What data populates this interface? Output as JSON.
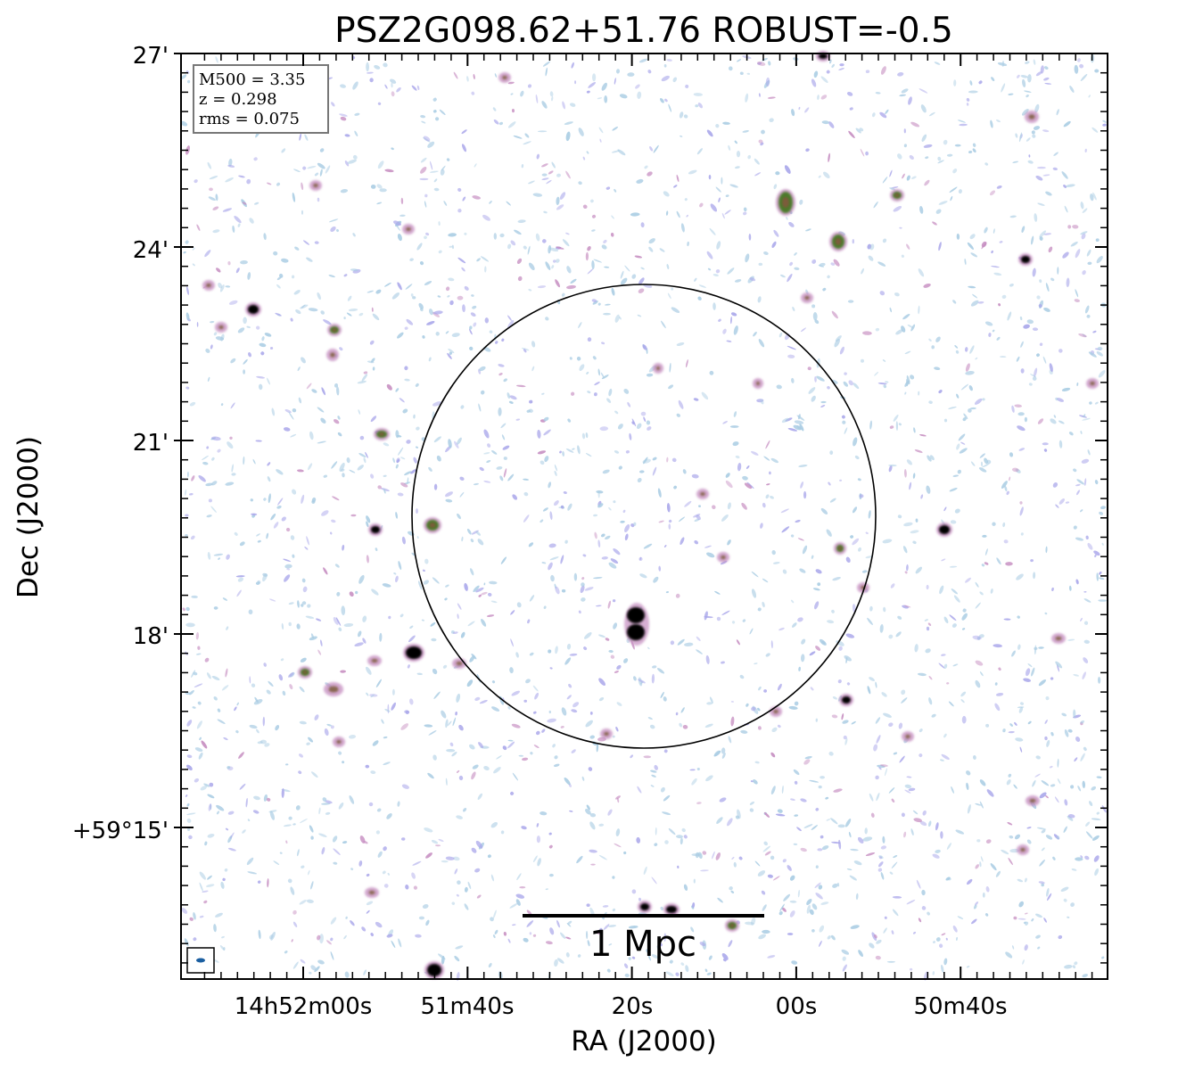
{
  "figure": {
    "title": "PSZ2G098.62+51.76 ROBUST=-0.5",
    "x_axis_label": "RA (J2000)",
    "y_axis_label": "Dec (J2000)",
    "x_tick_labels": [
      "14h52m00s",
      "51m40s",
      "20s",
      "00s",
      "50m40s"
    ],
    "y_tick_labels": [
      "27'",
      "24'",
      "21'",
      "18'",
      "+59°15'"
    ],
    "info": {
      "m500": "M500 = 3.35",
      "z": "z = 0.298",
      "rms": "rms = 0.075"
    },
    "scale_bar_label": "1 Mpc",
    "colormap": [
      "#a9cce3",
      "#a9a6ea",
      "#c58cc0",
      "#7b5b3a",
      "#4c7a2a",
      "#000000"
    ]
  }
}
